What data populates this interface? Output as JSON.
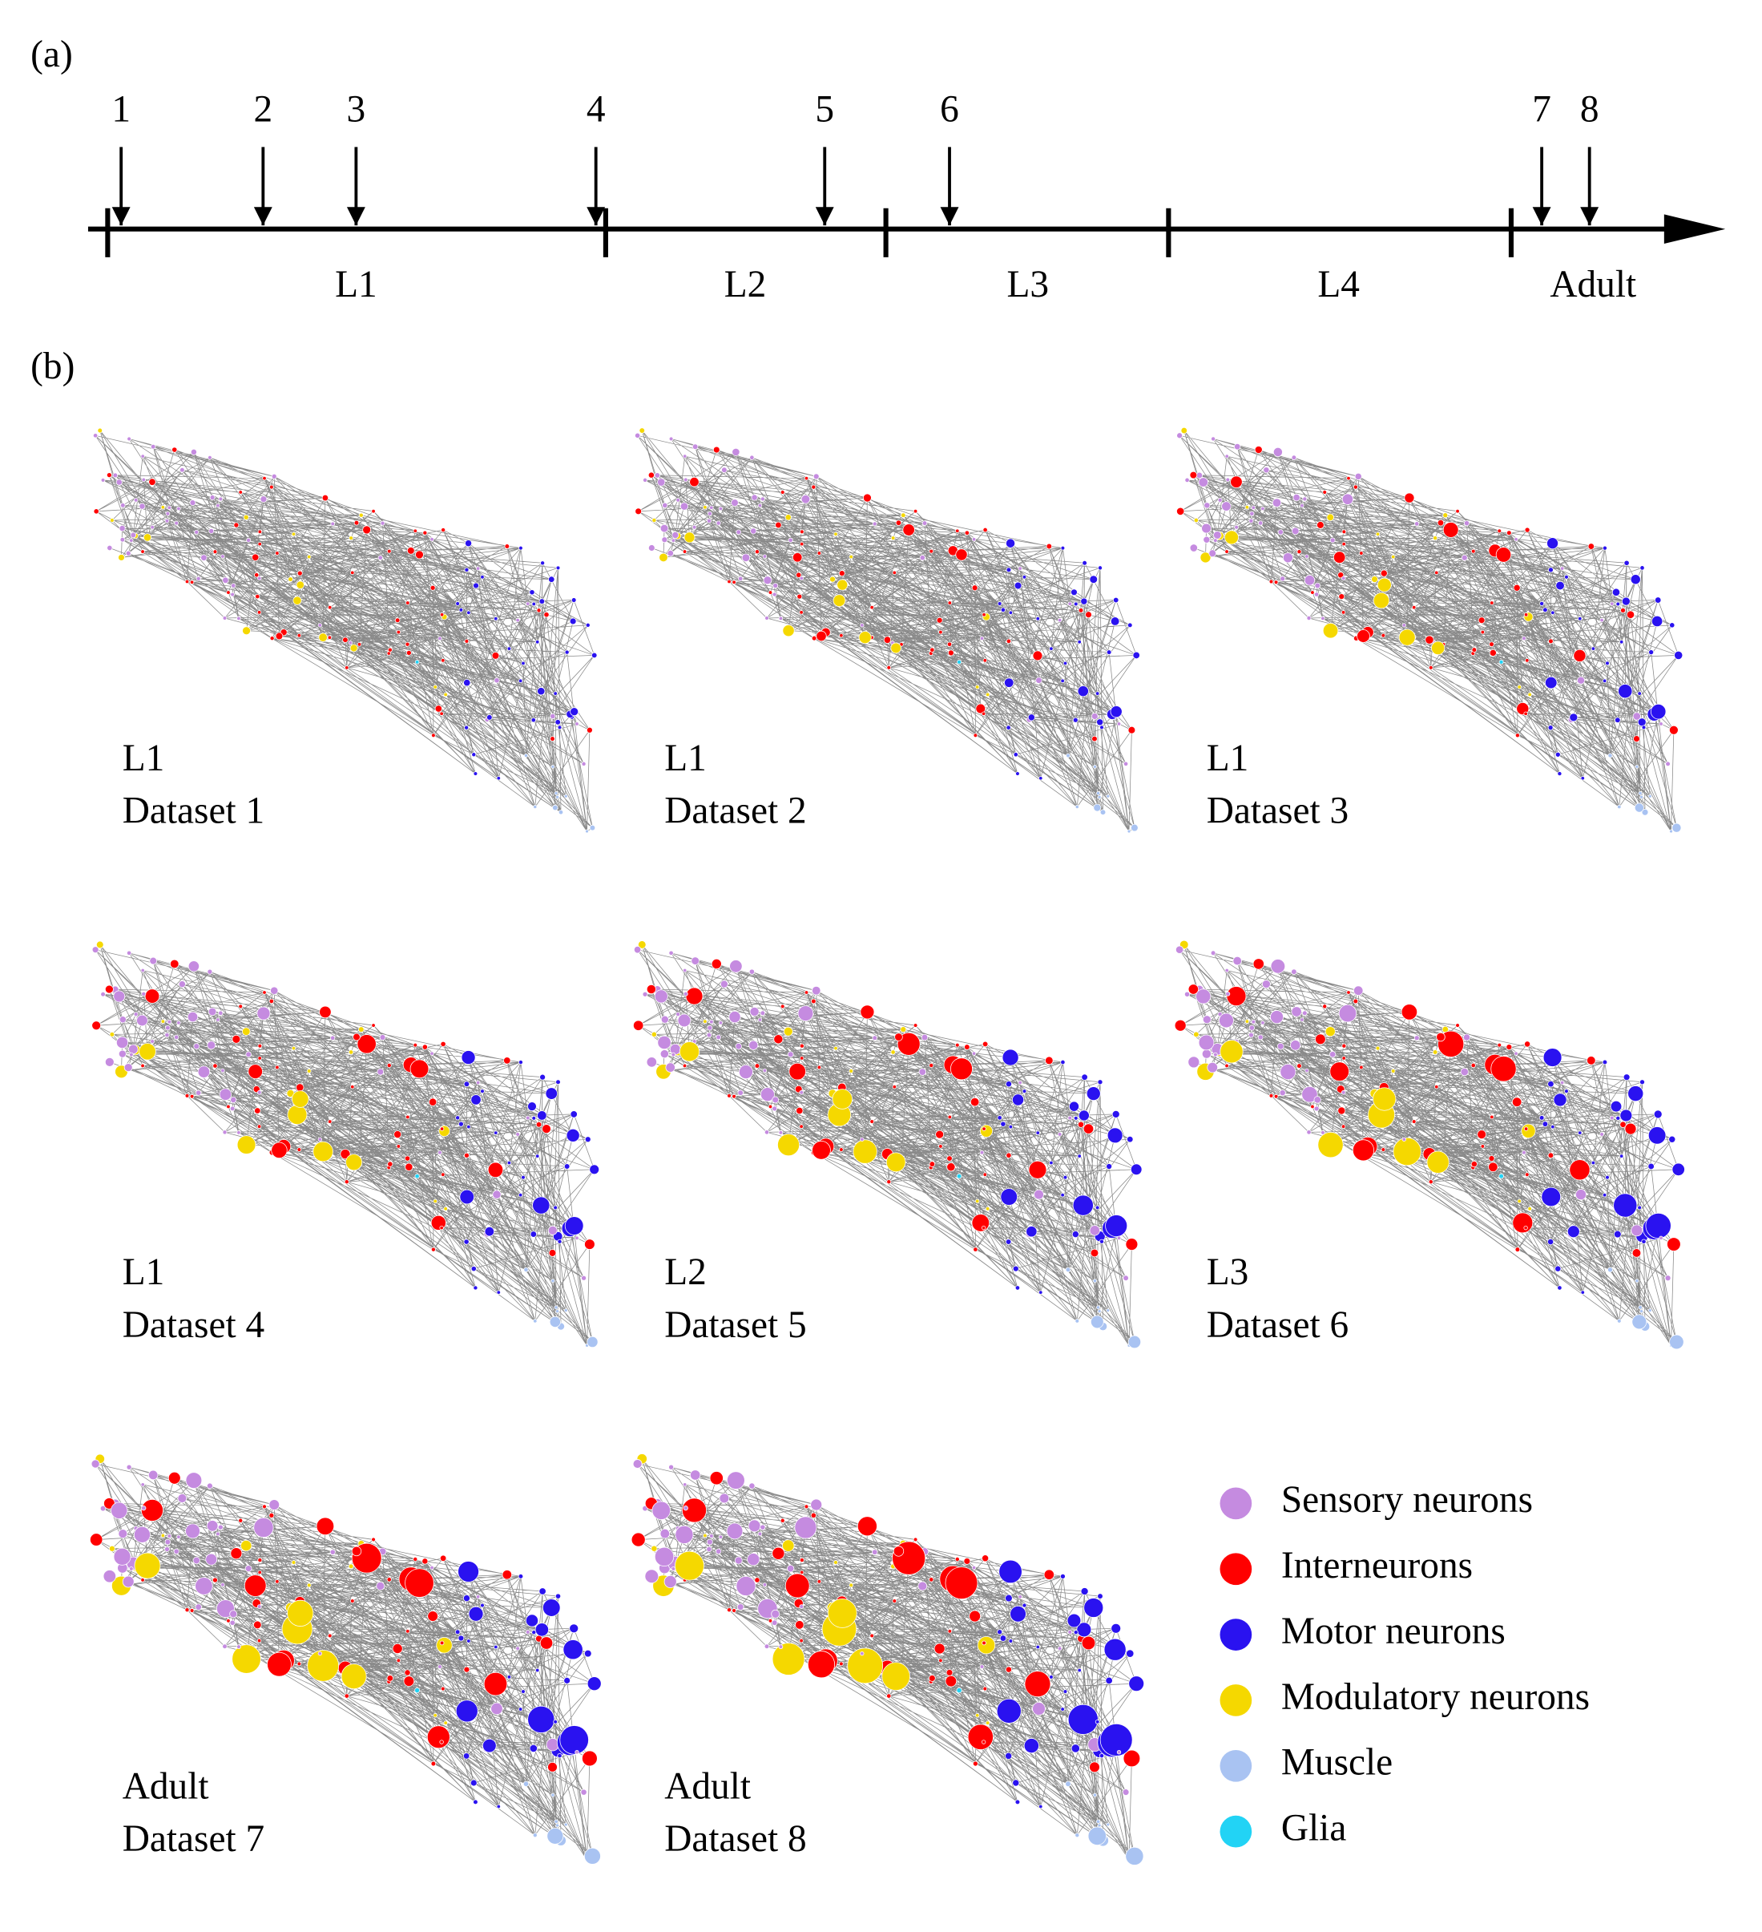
{
  "panel_a": {
    "label": "(a)",
    "time_points": [
      "1",
      "2",
      "3",
      "4",
      "5",
      "6",
      "7",
      "8"
    ],
    "stages": [
      "L1",
      "L2",
      "L3",
      "L4",
      "Adult"
    ]
  },
  "panel_b": {
    "label": "(b)",
    "datasets": [
      {
        "stage": "L1",
        "name": "Dataset 1"
      },
      {
        "stage": "L1",
        "name": "Dataset 2"
      },
      {
        "stage": "L1",
        "name": "Dataset 3"
      },
      {
        "stage": "L1",
        "name": "Dataset 4"
      },
      {
        "stage": "L2",
        "name": "Dataset 5"
      },
      {
        "stage": "L3",
        "name": "Dataset 6"
      },
      {
        "stage": "Adult",
        "name": "Dataset 7"
      },
      {
        "stage": "Adult",
        "name": "Dataset 8"
      }
    ]
  },
  "legend": [
    {
      "label": "Sensory neurons",
      "color": "#c58be0"
    },
    {
      "label": "Interneurons",
      "color": "#ff0000"
    },
    {
      "label": "Motor neurons",
      "color": "#2a12f0"
    },
    {
      "label": "Modulatory neurons",
      "color": "#f5d800"
    },
    {
      "label": "Muscle",
      "color": "#a9c3f2"
    },
    {
      "label": "Glia",
      "color": "#22d3f5"
    }
  ]
}
